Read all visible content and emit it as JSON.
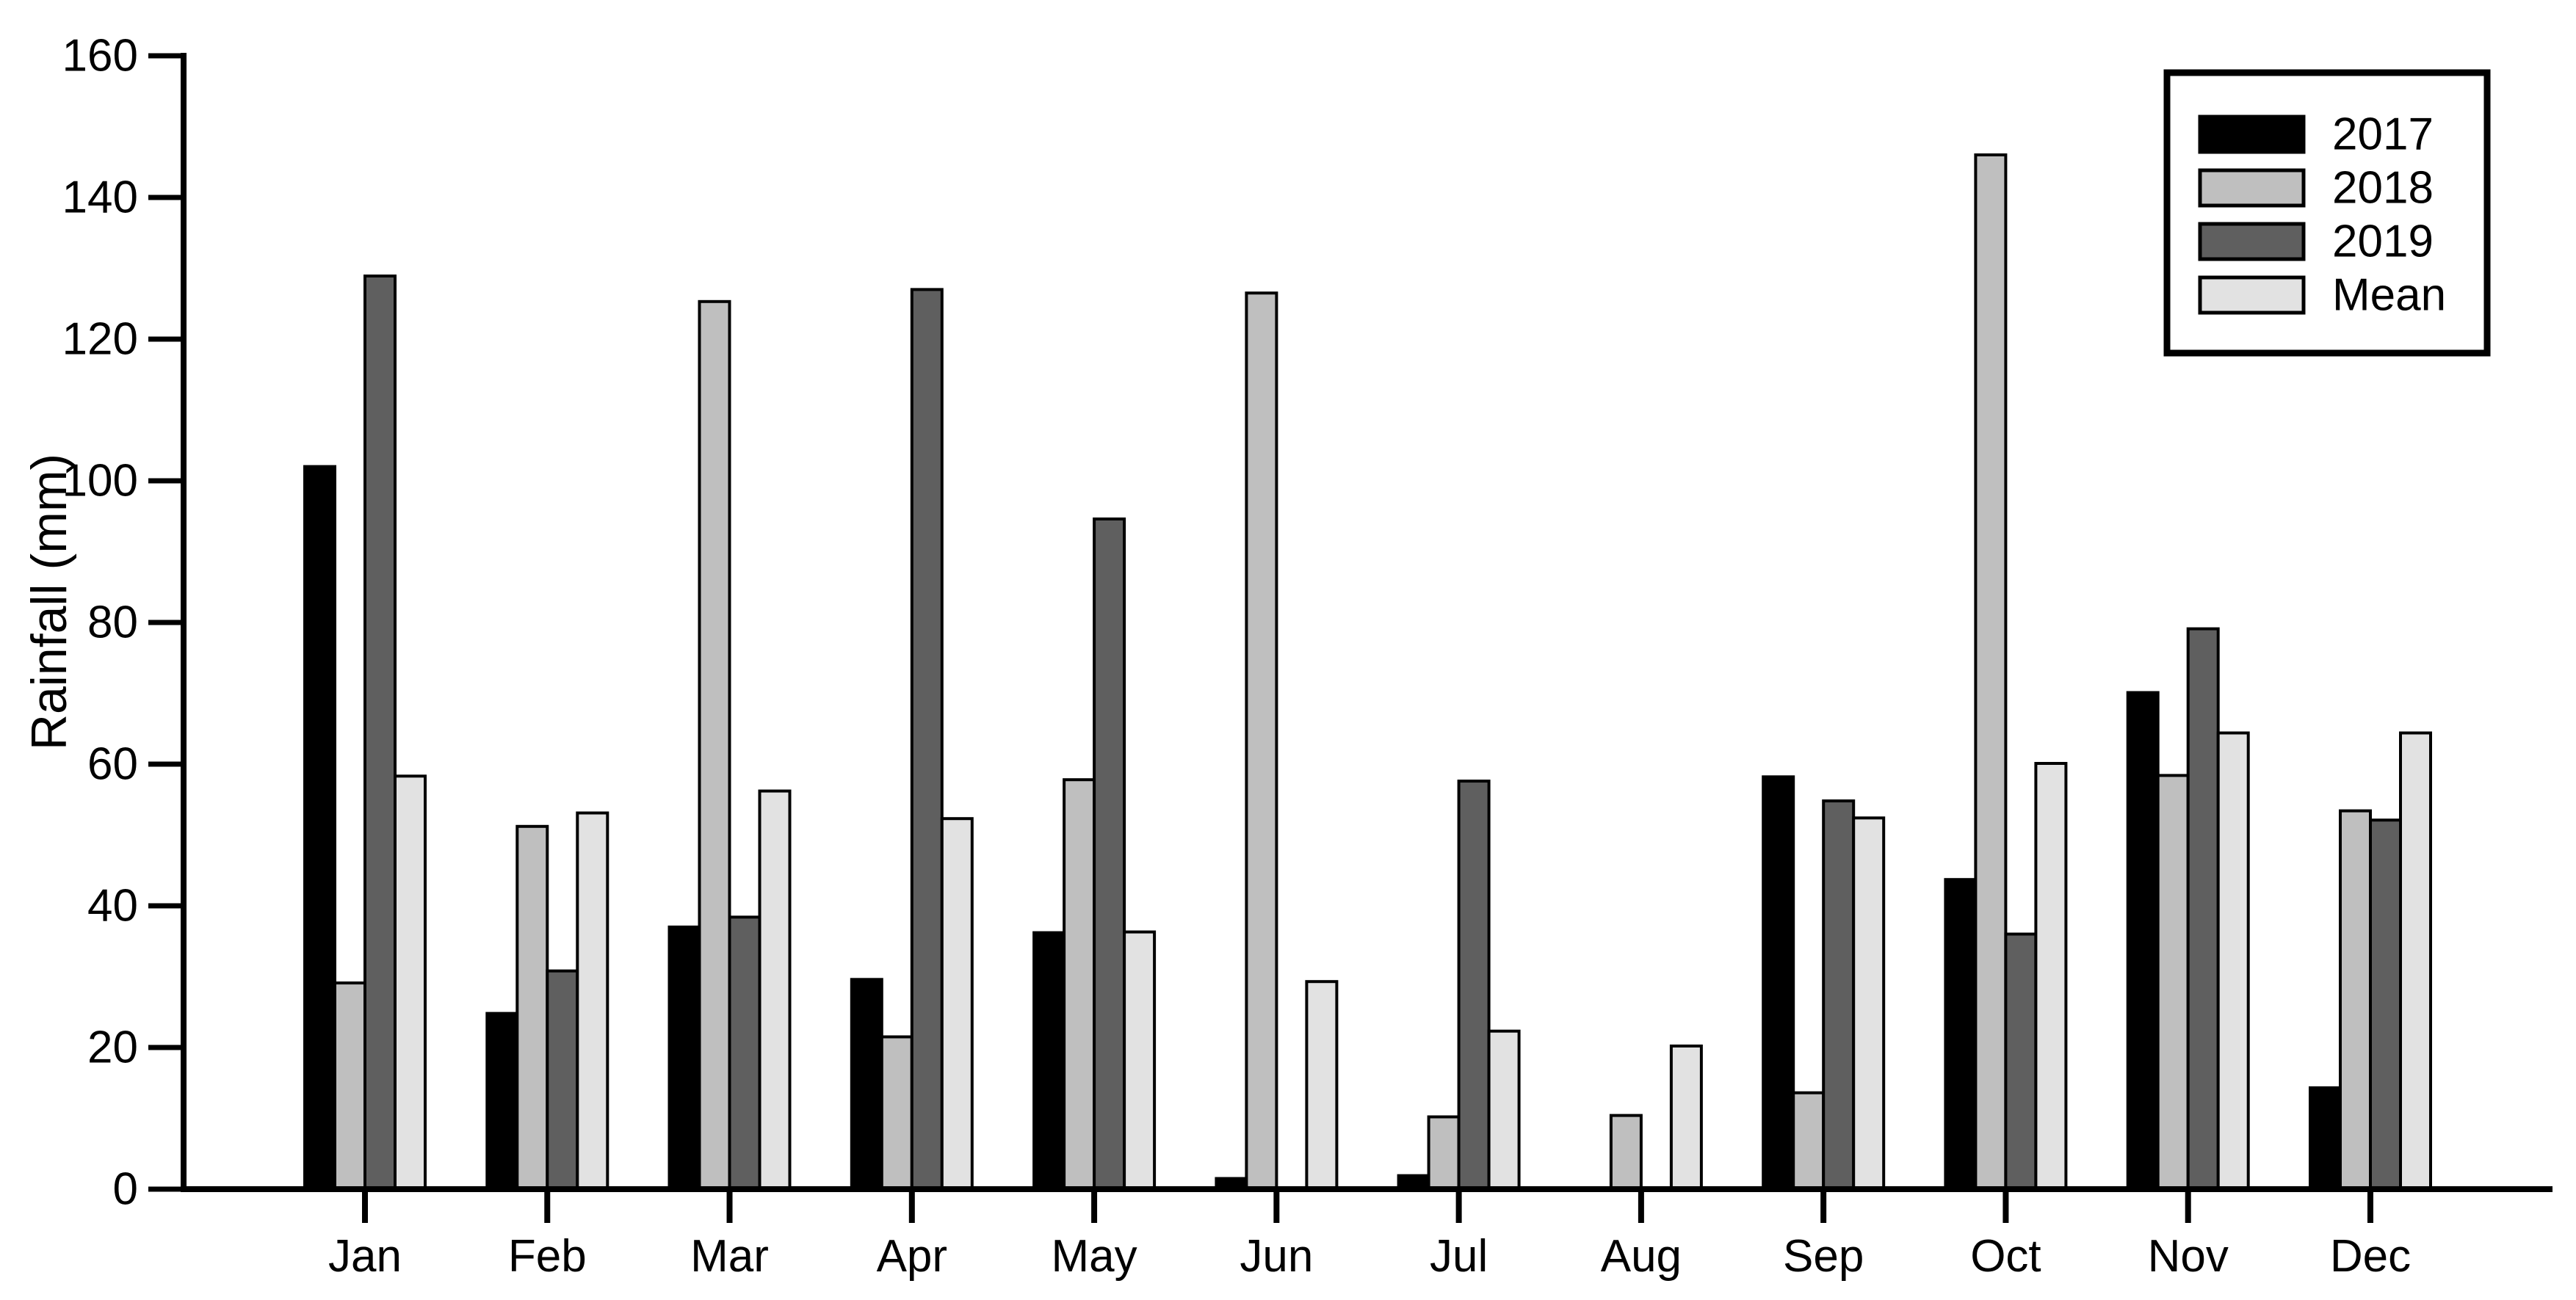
{
  "chart_data": {
    "type": "bar",
    "title": "",
    "xlabel": "",
    "ylabel": "Rainfall (mm)",
    "ylim": [
      0,
      160
    ],
    "ytick_step": 20,
    "grid": false,
    "legend_position": "top-right",
    "axis_color": "#000000",
    "categories": [
      "Jan",
      "Feb",
      "Mar",
      "Apr",
      "May",
      "Jun",
      "Jul",
      "Aug",
      "Sep",
      "Oct",
      "Nov",
      "Dec"
    ],
    "series": [
      {
        "name": "2017",
        "color": "#000000",
        "values": [
          101.8,
          24.6,
          36.8,
          29.4,
          36.0,
          1.3,
          1.7,
          0,
          58.0,
          43.5,
          69.9,
          14.1
        ]
      },
      {
        "name": "2018",
        "color": "#bfbfbf",
        "values": [
          28.9,
          51.0,
          125.1,
          21.3,
          57.6,
          126.3,
          10.0,
          10.2,
          13.4,
          145.8,
          58.2,
          53.2
        ]
      },
      {
        "name": "2019",
        "color": "#5f5f5f",
        "values": [
          128.7,
          30.6,
          38.2,
          126.8,
          94.4,
          0,
          57.4,
          0,
          54.6,
          35.8,
          78.9,
          51.9
        ]
      },
      {
        "name": "Mean",
        "color": "#e2e2e2",
        "values": [
          58.1,
          52.9,
          56.0,
          52.1,
          36.1,
          29.1,
          22.1,
          20.0,
          52.2,
          59.9,
          64.2,
          64.2
        ]
      }
    ]
  }
}
